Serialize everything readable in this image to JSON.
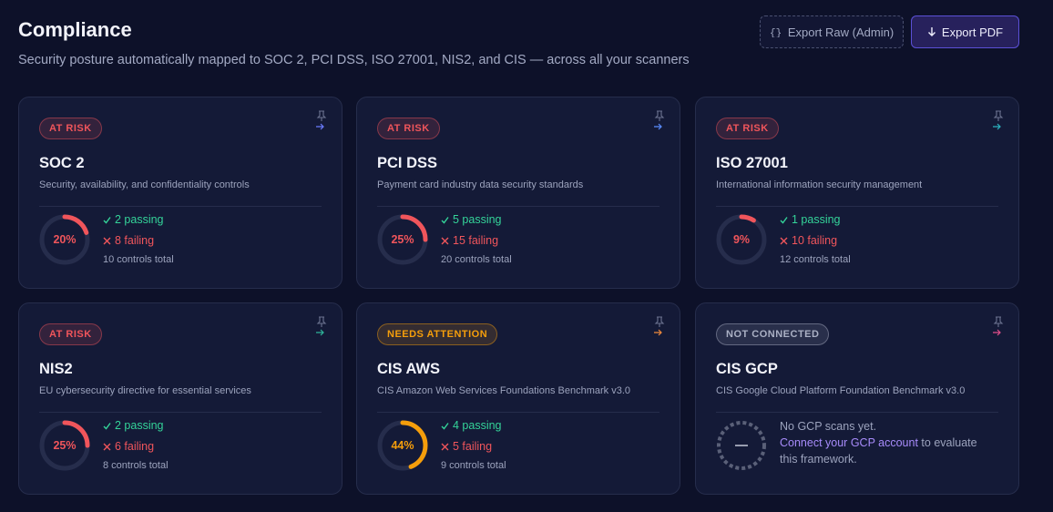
{
  "header": {
    "title": "Compliance",
    "subtitle": "Security posture automatically mapped to SOC 2, PCI DSS, ISO 27001, NIS2, and CIS — across all your scanners"
  },
  "actions": {
    "export_raw": "Export Raw (Admin)",
    "export_pdf": "Export PDF"
  },
  "cards": [
    {
      "status": "AT RISK",
      "title": "SOC 2",
      "description": "Security, availability, and confidentiality controls",
      "score": 20,
      "score_label": "20%",
      "passing": "2 passing",
      "failing": "8 failing",
      "total": "10 controls total",
      "color": "#f0555b",
      "arrow_color": "#6b7cff"
    },
    {
      "status": "AT RISK",
      "title": "PCI DSS",
      "description": "Payment card industry data security standards",
      "score": 25,
      "score_label": "25%",
      "passing": "5 passing",
      "failing": "15 failing",
      "total": "20 controls total",
      "color": "#f0555b",
      "arrow_color": "#5b8dff"
    },
    {
      "status": "AT RISK",
      "title": "ISO 27001",
      "description": "International information security management",
      "score": 9,
      "score_label": "9%",
      "passing": "1 passing",
      "failing": "10 failing",
      "total": "12 controls total",
      "color": "#f0555b",
      "arrow_color": "#2bb3c0"
    },
    {
      "status": "AT RISK",
      "title": "NIS2",
      "description": "EU cybersecurity directive for essential services",
      "score": 25,
      "score_label": "25%",
      "passing": "2 passing",
      "failing": "6 failing",
      "total": "8 controls total",
      "color": "#f0555b",
      "arrow_color": "#2fb59a"
    },
    {
      "status": "NEEDS ATTENTION",
      "title": "CIS AWS",
      "description": "CIS Amazon Web Services Foundations Benchmark v3.0",
      "score": 44,
      "score_label": "44%",
      "passing": "4 passing",
      "failing": "5 failing",
      "total": "9 controls total",
      "color": "#f59e0b",
      "arrow_color": "#f08a3c"
    },
    {
      "status": "NOT CONNECTED",
      "title": "CIS GCP",
      "description": "CIS Google Cloud Platform Foundation Benchmark v3.0",
      "empty_text": "No GCP scans yet.",
      "link_text": "Connect your GCP account",
      "link_suffix": "to evaluate this framework.",
      "color": "#aab0c4",
      "arrow_color": "#e04e8a"
    }
  ]
}
